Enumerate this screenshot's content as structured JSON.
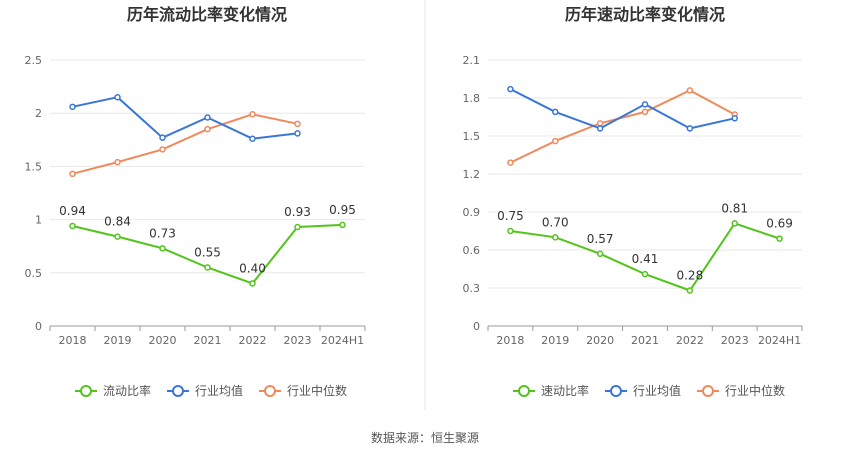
{
  "source": "数据来源：恒生聚源",
  "chart_data": [
    {
      "type": "line",
      "title": "历年流动比率变化情况",
      "categories": [
        "2018",
        "2019",
        "2020",
        "2021",
        "2022",
        "2023",
        "2024H1"
      ],
      "ylim": [
        0,
        2.5
      ],
      "yticks": [
        "0",
        "0.5",
        "1",
        "1.5",
        "2",
        "2.5"
      ],
      "grid": true,
      "legend_position": "bottom",
      "series": [
        {
          "name": "流动比率",
          "color": "#52c41a",
          "values": [
            0.94,
            0.84,
            0.73,
            0.55,
            0.4,
            0.93,
            0.95
          ],
          "labels": [
            "0.94",
            "0.84",
            "0.73",
            "0.55",
            "0.40",
            "0.93",
            "0.95"
          ]
        },
        {
          "name": "行业均值",
          "color": "#3a76d8",
          "values": [
            2.06,
            2.15,
            1.77,
            1.96,
            1.76,
            1.81,
            null
          ]
        },
        {
          "name": "行业中位数",
          "color": "#f08a5d",
          "values": [
            1.43,
            1.54,
            1.66,
            1.85,
            1.99,
            1.9,
            null
          ]
        }
      ]
    },
    {
      "type": "line",
      "title": "历年速动比率变化情况",
      "categories": [
        "2018",
        "2019",
        "2020",
        "2021",
        "2022",
        "2023",
        "2024H1"
      ],
      "ylim": [
        0,
        2.1
      ],
      "yticks": [
        "0",
        "0.3",
        "0.6",
        "0.9",
        "1.2",
        "1.5",
        "1.8",
        "2.1"
      ],
      "grid": true,
      "legend_position": "bottom",
      "series": [
        {
          "name": "速动比率",
          "color": "#52c41a",
          "values": [
            0.75,
            0.7,
            0.57,
            0.41,
            0.28,
            0.81,
            0.69
          ],
          "labels": [
            "0.75",
            "0.70",
            "0.57",
            "0.41",
            "0.28",
            "0.81",
            "0.69"
          ]
        },
        {
          "name": "行业均值",
          "color": "#3a76d8",
          "values": [
            1.87,
            1.69,
            1.56,
            1.75,
            1.56,
            1.64,
            null
          ]
        },
        {
          "name": "行业中位数",
          "color": "#f08a5d",
          "values": [
            1.29,
            1.46,
            1.6,
            1.69,
            1.86,
            1.67,
            null
          ]
        }
      ]
    }
  ]
}
